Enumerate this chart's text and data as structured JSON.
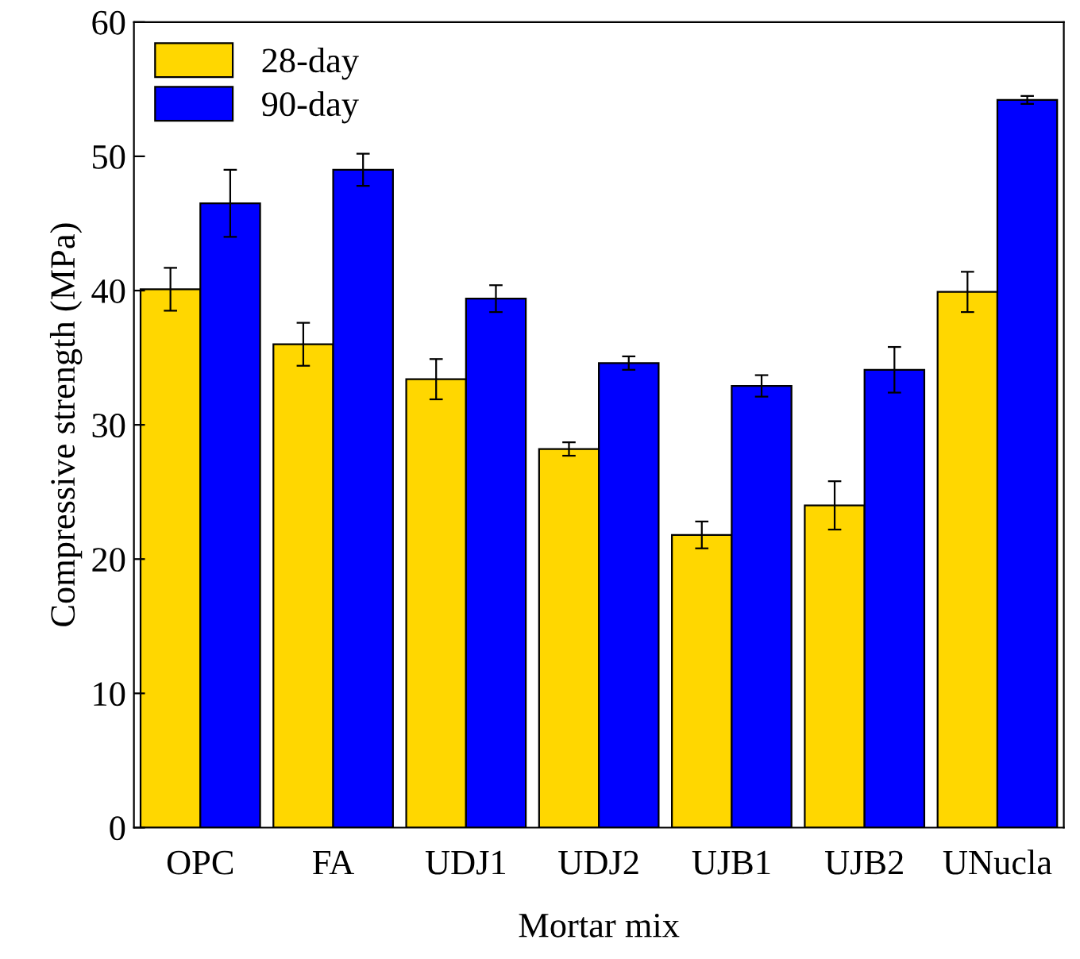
{
  "chart_data": {
    "type": "bar",
    "xlabel": "Mortar mix",
    "ylabel": "Compressive strength (MPa)",
    "categories": [
      "OPC",
      "FA",
      "UDJ1",
      "UDJ2",
      "UJB1",
      "UJB2",
      "UNucla"
    ],
    "series": [
      {
        "name": "28-day",
        "color": "#ffd700",
        "values": [
          40.1,
          36.0,
          33.4,
          28.2,
          21.8,
          24.0,
          39.9
        ],
        "errors": [
          1.6,
          1.6,
          1.5,
          0.5,
          1.0,
          1.8,
          1.5
        ]
      },
      {
        "name": "90-day",
        "color": "#0000ff",
        "values": [
          46.5,
          49.0,
          39.4,
          34.6,
          32.9,
          34.1,
          54.2
        ],
        "errors": [
          2.5,
          1.2,
          1.0,
          0.5,
          0.8,
          1.7,
          0.3
        ]
      }
    ],
    "ylim": [
      0,
      60
    ],
    "yticks": [
      0,
      10,
      20,
      30,
      40,
      50,
      60
    ],
    "grid": false,
    "legend": "top left"
  }
}
